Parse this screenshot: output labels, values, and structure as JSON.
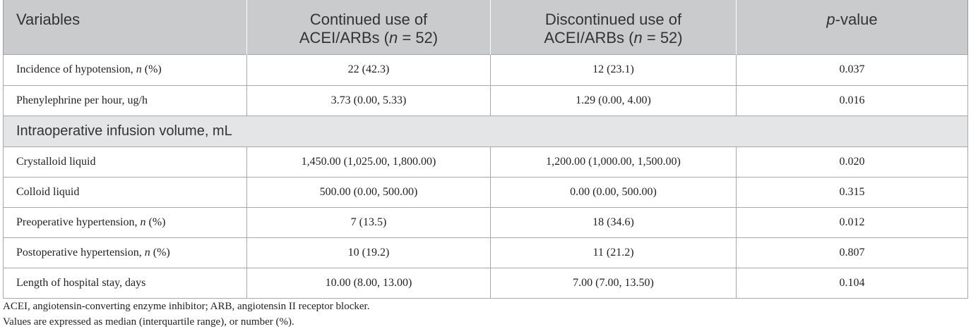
{
  "table": {
    "headers": [
      {
        "main": "Variables"
      },
      {
        "line1": "Continued use of",
        "line2_pre": "ACEI/ARBs (",
        "line2_italic": "n",
        "line2_post": " = 52)"
      },
      {
        "line1": "Discontinued use of",
        "line2_pre": "ACEI/ARBs (",
        "line2_italic": "n",
        "line2_post": " = 52)"
      },
      {
        "italic": "p",
        "post": "-value"
      }
    ],
    "rows": [
      {
        "type": "data",
        "label_pre": "Incidence of hypotension, ",
        "label_italic": "n",
        "label_post": " (%)",
        "continued": "22 (42.3)",
        "discontinued": "12 (23.1)",
        "p": "0.037"
      },
      {
        "type": "data",
        "label_pre": "Phenylephrine per hour, ug/h",
        "label_italic": "",
        "label_post": "",
        "continued": "3.73 (0.00, 5.33)",
        "discontinued": "1.29 (0.00, 4.00)",
        "p": "0.016"
      },
      {
        "type": "section",
        "label": "Intraoperative infusion volume, mL"
      },
      {
        "type": "data",
        "label_pre": "Crystalloid liquid",
        "label_italic": "",
        "label_post": "",
        "continued": "1,450.00 (1,025.00, 1,800.00)",
        "discontinued": "1,200.00 (1,000.00, 1,500.00)",
        "p": "0.020"
      },
      {
        "type": "data",
        "label_pre": "Colloid liquid",
        "label_italic": "",
        "label_post": "",
        "continued": "500.00 (0.00, 500.00)",
        "discontinued": "0.00 (0.00, 500.00)",
        "p": "0.315"
      },
      {
        "type": "data",
        "label_pre": "Preoperative hypertension, ",
        "label_italic": "n",
        "label_post": " (%)",
        "continued": "7 (13.5)",
        "discontinued": "18 (34.6)",
        "p": "0.012"
      },
      {
        "type": "data",
        "label_pre": "Postoperative hypertension, ",
        "label_italic": "n",
        "label_post": " (%)",
        "continued": "10 (19.2)",
        "discontinued": "11 (21.2)",
        "p": "0.807"
      },
      {
        "type": "data",
        "label_pre": "Length of hospital stay, days",
        "label_italic": "",
        "label_post": "",
        "continued": "10.00 (8.00, 13.00)",
        "discontinued": "7.00 (7.00, 13.50)",
        "p": "0.104"
      }
    ]
  },
  "notes": [
    "ACEI, angiotensin-converting enzyme inhibitor; ARB, angiotensin II receptor blocker.",
    "Values are expressed as median (interquartile range), or number (%)."
  ],
  "colors": {
    "header_bg": "#c9cbcd",
    "section_bg": "#e3e5e6",
    "border": "#a8a8a8"
  }
}
